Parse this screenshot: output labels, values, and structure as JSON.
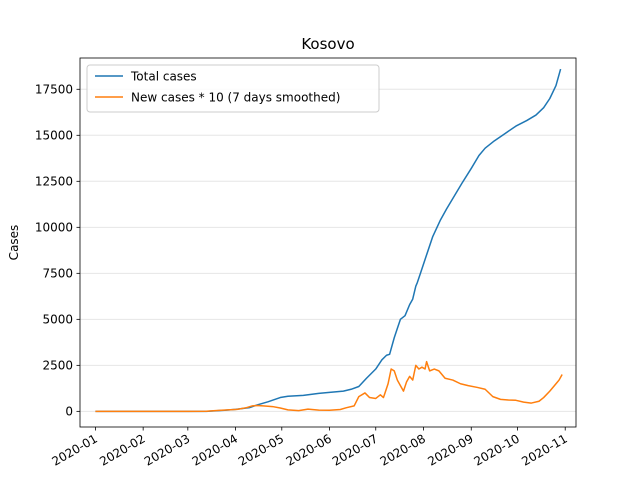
{
  "chart_data": {
    "type": "line",
    "title": "Kosovo",
    "xlabel": "",
    "ylabel": "Cases",
    "x_ticks": [
      "2020-01",
      "2020-02",
      "2020-03",
      "2020-04",
      "2020-05",
      "2020-06",
      "2020-07",
      "2020-08",
      "2020-09",
      "2020-10",
      "2020-11"
    ],
    "y_ticks": [
      0,
      2500,
      5000,
      7500,
      10000,
      12500,
      15000,
      17500
    ],
    "y_tick_labels": [
      "0",
      "2500",
      "5000",
      "7500",
      "10000",
      "12500",
      "15000",
      "17500"
    ],
    "xlim": [
      "2019-12-22",
      "2020-11-08"
    ],
    "ylim": [
      -850,
      19200
    ],
    "grid": "horizontal",
    "legend_position": "upper-left",
    "series": [
      {
        "name": "Total cases",
        "color": "#1f77b4",
        "points": [
          [
            "2020-01-01",
            0
          ],
          [
            "2020-02-01",
            0
          ],
          [
            "2020-03-01",
            0
          ],
          [
            "2020-03-13",
            2
          ],
          [
            "2020-03-25",
            60
          ],
          [
            "2020-04-01",
            110
          ],
          [
            "2020-04-10",
            200
          ],
          [
            "2020-04-15",
            350
          ],
          [
            "2020-04-22",
            520
          ],
          [
            "2020-04-30",
            750
          ],
          [
            "2020-05-05",
            820
          ],
          [
            "2020-05-15",
            870
          ],
          [
            "2020-05-25",
            980
          ],
          [
            "2020-06-01",
            1030
          ],
          [
            "2020-06-10",
            1100
          ],
          [
            "2020-06-15",
            1200
          ],
          [
            "2020-06-20",
            1350
          ],
          [
            "2020-06-25",
            1800
          ],
          [
            "2020-07-01",
            2300
          ],
          [
            "2020-07-05",
            2800
          ],
          [
            "2020-07-08",
            3050
          ],
          [
            "2020-07-10",
            3100
          ],
          [
            "2020-07-13",
            4000
          ],
          [
            "2020-07-15",
            4500
          ],
          [
            "2020-07-17",
            5000
          ],
          [
            "2020-07-20",
            5200
          ],
          [
            "2020-07-23",
            5800
          ],
          [
            "2020-07-25",
            6100
          ],
          [
            "2020-07-27",
            6800
          ],
          [
            "2020-07-28",
            7000
          ],
          [
            "2020-07-30",
            7500
          ],
          [
            "2020-08-03",
            8500
          ],
          [
            "2020-08-07",
            9500
          ],
          [
            "2020-08-12",
            10400
          ],
          [
            "2020-08-16",
            11000
          ],
          [
            "2020-08-21",
            11700
          ],
          [
            "2020-08-26",
            12400
          ],
          [
            "2020-09-01",
            13200
          ],
          [
            "2020-09-06",
            13900
          ],
          [
            "2020-09-10",
            14300
          ],
          [
            "2020-09-16",
            14700
          ],
          [
            "2020-09-23",
            15100
          ],
          [
            "2020-09-30",
            15500
          ],
          [
            "2020-10-07",
            15800
          ],
          [
            "2020-10-13",
            16100
          ],
          [
            "2020-10-18",
            16500
          ],
          [
            "2020-10-22",
            17000
          ],
          [
            "2020-10-26",
            17700
          ],
          [
            "2020-10-29",
            18600
          ]
        ]
      },
      {
        "name": "New cases * 10 (7 days smoothed)",
        "color": "#ff7f0e",
        "points": [
          [
            "2020-01-01",
            0
          ],
          [
            "2020-02-01",
            0
          ],
          [
            "2020-03-01",
            0
          ],
          [
            "2020-03-13",
            5
          ],
          [
            "2020-03-20",
            50
          ],
          [
            "2020-03-27",
            80
          ],
          [
            "2020-04-02",
            110
          ],
          [
            "2020-04-08",
            200
          ],
          [
            "2020-04-12",
            300
          ],
          [
            "2020-04-15",
            320
          ],
          [
            "2020-04-20",
            290
          ],
          [
            "2020-04-25",
            260
          ],
          [
            "2020-04-30",
            180
          ],
          [
            "2020-05-05",
            80
          ],
          [
            "2020-05-12",
            40
          ],
          [
            "2020-05-18",
            120
          ],
          [
            "2020-05-25",
            70
          ],
          [
            "2020-06-01",
            60
          ],
          [
            "2020-06-08",
            100
          ],
          [
            "2020-06-12",
            200
          ],
          [
            "2020-06-17",
            300
          ],
          [
            "2020-06-20",
            800
          ],
          [
            "2020-06-24",
            1000
          ],
          [
            "2020-06-27",
            750
          ],
          [
            "2020-07-01",
            700
          ],
          [
            "2020-07-04",
            900
          ],
          [
            "2020-07-06",
            750
          ],
          [
            "2020-07-07",
            1000
          ],
          [
            "2020-07-09",
            1500
          ],
          [
            "2020-07-11",
            2300
          ],
          [
            "2020-07-13",
            2200
          ],
          [
            "2020-07-15",
            1700
          ],
          [
            "2020-07-17",
            1400
          ],
          [
            "2020-07-19",
            1100
          ],
          [
            "2020-07-21",
            1600
          ],
          [
            "2020-07-23",
            1900
          ],
          [
            "2020-07-25",
            1700
          ],
          [
            "2020-07-27",
            2500
          ],
          [
            "2020-07-29",
            2300
          ],
          [
            "2020-07-31",
            2400
          ],
          [
            "2020-08-02",
            2300
          ],
          [
            "2020-08-03",
            2700
          ],
          [
            "2020-08-05",
            2200
          ],
          [
            "2020-08-08",
            2300
          ],
          [
            "2020-08-11",
            2200
          ],
          [
            "2020-08-15",
            1800
          ],
          [
            "2020-08-20",
            1700
          ],
          [
            "2020-08-25",
            1500
          ],
          [
            "2020-08-30",
            1400
          ],
          [
            "2020-09-05",
            1300
          ],
          [
            "2020-09-10",
            1200
          ],
          [
            "2020-09-15",
            800
          ],
          [
            "2020-09-20",
            650
          ],
          [
            "2020-09-25",
            620
          ],
          [
            "2020-09-30",
            600
          ],
          [
            "2020-10-05",
            500
          ],
          [
            "2020-10-10",
            450
          ],
          [
            "2020-10-15",
            550
          ],
          [
            "2020-10-18",
            750
          ],
          [
            "2020-10-22",
            1100
          ],
          [
            "2020-10-25",
            1400
          ],
          [
            "2020-10-28",
            1700
          ],
          [
            "2020-10-30",
            2000
          ]
        ]
      }
    ]
  }
}
